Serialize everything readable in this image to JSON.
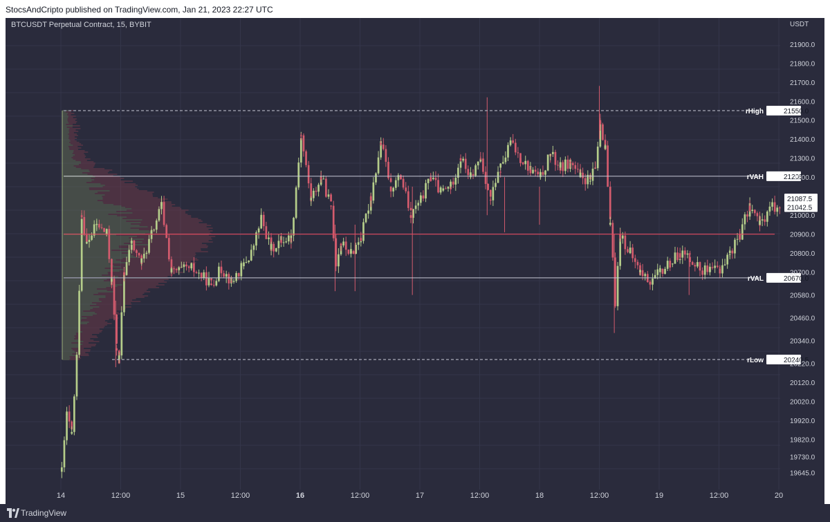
{
  "header": {
    "text": "StocsAndCripto published on TradingView.com, Jan 21, 2023 22:27 UTC"
  },
  "symbol_title": "BTCUSDT Perpetual Contract, 15, BYBIT",
  "footer": {
    "brand": "TradingView"
  },
  "colors": {
    "background": "#2a2b3c",
    "grid": "#34364a",
    "bull": "#b5cd8a",
    "bear": "#d35b6d",
    "axis_text": "#d1d4dc",
    "poc_line": "#e04a5f",
    "level_line": "#c8cad6"
  },
  "chart_data": {
    "type": "candlestick",
    "currency": "USDT",
    "y_ticks": [
      "21900.0",
      "21800.0",
      "21700.0",
      "21600.0",
      "21500.0",
      "21400.0",
      "21300.0",
      "21200.0",
      "21000.0",
      "20900.0",
      "20800.0",
      "20700.0",
      "20580.0",
      "20460.0",
      "20340.0",
      "20220.0",
      "20120.0",
      "20020.0",
      "19920.0",
      "19820.0",
      "19730.0",
      "19645.0"
    ],
    "x_ticks": [
      {
        "label": "14",
        "bold": false
      },
      {
        "label": "12:00",
        "bold": false
      },
      {
        "label": "15",
        "bold": false
      },
      {
        "label": "12:00",
        "bold": false
      },
      {
        "label": "16",
        "bold": true
      },
      {
        "label": "12:00",
        "bold": false
      },
      {
        "label": "17",
        "bold": false
      },
      {
        "label": "12:00",
        "bold": false
      },
      {
        "label": "18",
        "bold": false
      },
      {
        "label": "12:00",
        "bold": false
      },
      {
        "label": "19",
        "bold": false
      },
      {
        "label": "12:00",
        "bold": false
      },
      {
        "label": "20",
        "bold": false
      }
    ],
    "levels": [
      {
        "name": "rHigh",
        "value": "21550.0",
        "style": "dashed"
      },
      {
        "name": "rVAH",
        "value": "21205.0",
        "style": "solid"
      },
      {
        "name": "rVAL",
        "value": "20670.0",
        "style": "solid"
      },
      {
        "name": "rLow",
        "value": "20240.5",
        "style": "dashed"
      }
    ],
    "price_labels": [
      "21087.5",
      "21042.5"
    ],
    "poc": 20900,
    "price_path": [
      [
        "14",
        19650
      ],
      [
        "14 01:00",
        19950
      ],
      [
        "14 02:00",
        19850
      ],
      [
        "14 03:00",
        20250
      ],
      [
        "14 04:00",
        21000
      ],
      [
        "14 05:00",
        20850
      ],
      [
        "14 07:00",
        20950
      ],
      [
        "14 09:00",
        20900
      ],
      [
        "14 10:00",
        20650
      ],
      [
        "14 11:00",
        20300
      ],
      [
        "14 11:30",
        20242
      ],
      [
        "14 12:30",
        20700
      ],
      [
        "14 14:00",
        20850
      ],
      [
        "14 16:00",
        20750
      ],
      [
        "14 18:00",
        20900
      ],
      [
        "14 20:00",
        21050
      ],
      [
        "14 22:00",
        20700
      ],
      [
        "15 02:00",
        20720
      ],
      [
        "15 06:00",
        20640
      ],
      [
        "15 08:00",
        20720
      ],
      [
        "15 10:00",
        20650
      ],
      [
        "15 12:00",
        20720
      ],
      [
        "15 14:00",
        20800
      ],
      [
        "15 16:00",
        20980
      ],
      [
        "15 18:00",
        20820
      ],
      [
        "15 20:00",
        20870
      ],
      [
        "15 22:00",
        20880
      ],
      [
        "16",
        21420
      ],
      [
        "16 02:00",
        21080
      ],
      [
        "16 04:00",
        21200
      ],
      [
        "16 06:00",
        21050
      ],
      [
        "16 07:00",
        20750
      ],
      [
        "16 08:00",
        20850
      ],
      [
        "16 10:00",
        20800
      ],
      [
        "16 12:00",
        20880
      ],
      [
        "16 14:00",
        21100
      ],
      [
        "16 16:00",
        21380
      ],
      [
        "16 18:00",
        21150
      ],
      [
        "16 20:00",
        21200
      ],
      [
        "16 22:00",
        21000
      ],
      [
        "17",
        21080
      ],
      [
        "17 02:00",
        21200
      ],
      [
        "17 04:00",
        21120
      ],
      [
        "17 06:00",
        21150
      ],
      [
        "17 08:00",
        21300
      ],
      [
        "17 10:00",
        21200
      ],
      [
        "17 12:00",
        21300
      ],
      [
        "17 14:00",
        21080
      ],
      [
        "17 16:00",
        21250
      ],
      [
        "17 18:00",
        21380
      ],
      [
        "17 20:00",
        21300
      ],
      [
        "17 22:00",
        21240
      ],
      [
        "18",
        21200
      ],
      [
        "18 02:00",
        21320
      ],
      [
        "18 04:00",
        21250
      ],
      [
        "18 06:00",
        21280
      ],
      [
        "18 08:00",
        21200
      ],
      [
        "18 10:00",
        21180
      ],
      [
        "18 11:00",
        21250
      ],
      [
        "18 12:00",
        21500
      ],
      [
        "18 13:00",
        21350
      ],
      [
        "18 14:00",
        20950
      ],
      [
        "18 15:00",
        20550
      ],
      [
        "18 16:00",
        20900
      ],
      [
        "18 18:00",
        20800
      ],
      [
        "18 20:00",
        20700
      ],
      [
        "18 22:00",
        20650
      ],
      [
        "19",
        20700
      ],
      [
        "19 02:00",
        20750
      ],
      [
        "19 04:00",
        20800
      ],
      [
        "19 06:00",
        20780
      ],
      [
        "19 08:00",
        20720
      ],
      [
        "19 10:00",
        20700
      ],
      [
        "19 12:00",
        20720
      ],
      [
        "19 14:00",
        20800
      ],
      [
        "19 16:00",
        20900
      ],
      [
        "19 18:00",
        21050
      ],
      [
        "19 20:00",
        20950
      ],
      [
        "19 22:00",
        21040
      ],
      [
        "20",
        21050
      ]
    ],
    "volume_profile": {
      "price_range": [
        20240.5,
        21550.0
      ],
      "peak_price": 20900,
      "note": "green/red horizontal histogram anchored at the left of the range"
    }
  }
}
